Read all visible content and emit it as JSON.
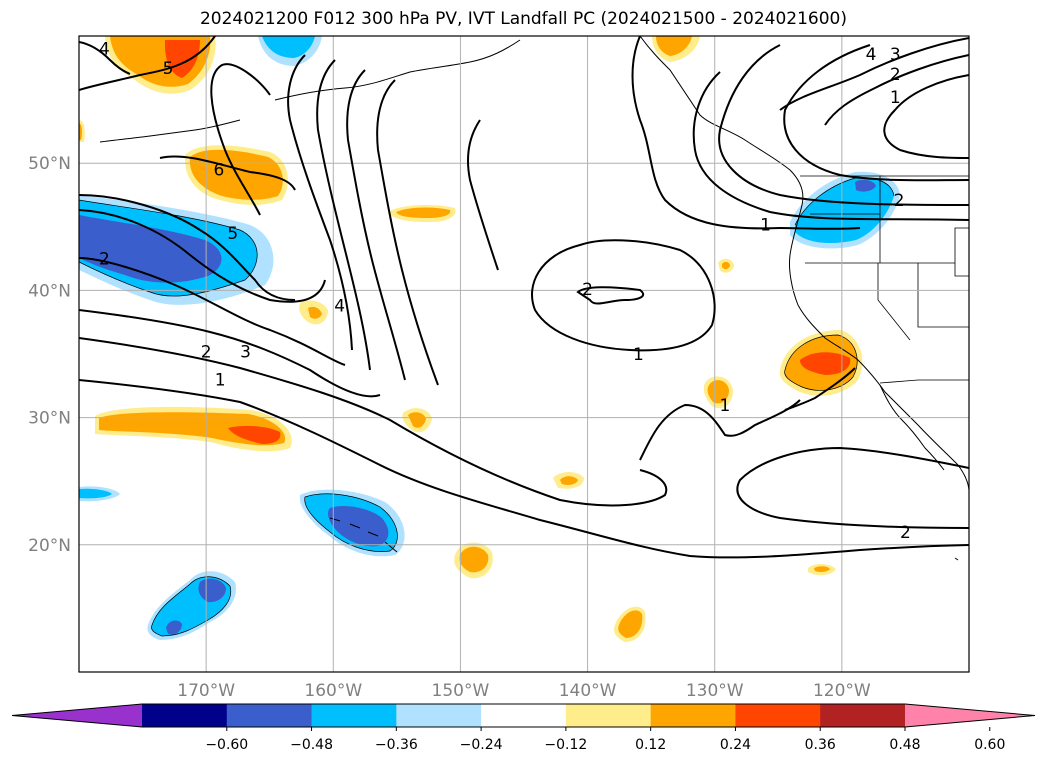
{
  "title": "2024021200 F012 300 hPa PV, IVT Landfall PC (2024021500 - 2024021600)",
  "map": {
    "lon_range": [
      -180,
      -110
    ],
    "lat_range": [
      10,
      60
    ],
    "lat_ticks": [
      {
        "value": 20,
        "label": "20°N"
      },
      {
        "value": 30,
        "label": "30°N"
      },
      {
        "value": 40,
        "label": "40°N"
      },
      {
        "value": 50,
        "label": "50°N"
      }
    ],
    "lon_ticks": [
      {
        "value": -170,
        "label": "170°W"
      },
      {
        "value": -160,
        "label": "160°W"
      },
      {
        "value": -150,
        "label": "150°W"
      },
      {
        "value": -140,
        "label": "140°W"
      },
      {
        "value": -130,
        "label": "130°W"
      },
      {
        "value": -120,
        "label": "120°W"
      }
    ],
    "grid": true,
    "contour_labels": [
      {
        "text": "4",
        "lon": -178,
        "lat": 59
      },
      {
        "text": "5",
        "lon": -173,
        "lat": 57.5
      },
      {
        "text": "6",
        "lon": -169,
        "lat": 49.5
      },
      {
        "text": "5",
        "lon": -167.9,
        "lat": 44.5
      },
      {
        "text": "2",
        "lon": -178,
        "lat": 42.5
      },
      {
        "text": "4",
        "lon": -159.5,
        "lat": 38.8
      },
      {
        "text": "2",
        "lon": -170,
        "lat": 35.2
      },
      {
        "text": "3",
        "lon": -166.9,
        "lat": 35.2
      },
      {
        "text": "1",
        "lon": -168.9,
        "lat": 33
      },
      {
        "text": "2",
        "lon": -140,
        "lat": 40.1
      },
      {
        "text": "1",
        "lon": -136,
        "lat": 35
      },
      {
        "text": "1",
        "lon": -126,
        "lat": 45.2
      },
      {
        "text": "1",
        "lon": -129.2,
        "lat": 31
      },
      {
        "text": "2",
        "lon": -115.5,
        "lat": 47.1
      },
      {
        "text": "4",
        "lon": -117.7,
        "lat": 58.6
      },
      {
        "text": "3",
        "lon": -115.8,
        "lat": 58.6
      },
      {
        "text": "2",
        "lon": -115.8,
        "lat": 57
      },
      {
        "text": "1",
        "lon": -115.8,
        "lat": 55.2
      },
      {
        "text": "2",
        "lon": -115,
        "lat": 21
      }
    ]
  },
  "colorbar": {
    "ticks": [
      "−0.60",
      "−0.48",
      "−0.36",
      "−0.24",
      "−0.12",
      "0.12",
      "0.24",
      "0.36",
      "0.48",
      "0.60"
    ],
    "colors": [
      "#9932cc",
      "#00008b",
      "#3a5fcd",
      "#00bfff",
      "#b0e2ff",
      "#ffffff",
      "#ffec8b",
      "#ffa500",
      "#ff4500",
      "#b22222",
      "#ff82ab"
    ]
  },
  "fill_colors": {
    "yellow": "#ffec8b",
    "orange": "#ffa500",
    "red": "#ff4500",
    "lightblue": "#b0e2ff",
    "cyan": "#00bfff",
    "blue": "#3a5fcd"
  }
}
